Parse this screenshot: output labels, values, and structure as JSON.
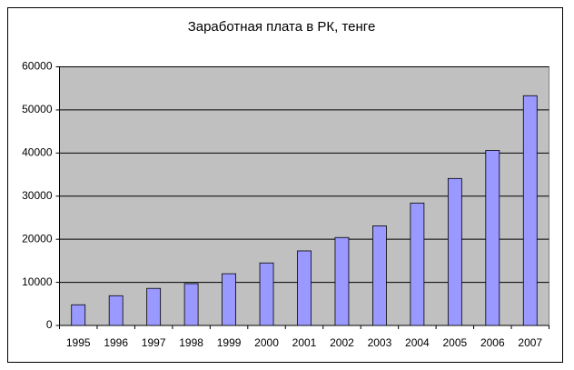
{
  "chart_data": {
    "type": "bar",
    "title": "Заработная плата в РК, тенге",
    "categories": [
      "1995",
      "1996",
      "1997",
      "1998",
      "1999",
      "2000",
      "2001",
      "2002",
      "2003",
      "2004",
      "2005",
      "2006",
      "2007"
    ],
    "values": [
      4800,
      6900,
      8600,
      9700,
      12000,
      14500,
      17300,
      20400,
      23100,
      28400,
      34100,
      40600,
      53300
    ],
    "color": "#9999ff",
    "ylim": [
      0,
      60000
    ],
    "yticks": [
      0,
      10000,
      20000,
      30000,
      40000,
      50000,
      60000
    ],
    "grid": true
  }
}
